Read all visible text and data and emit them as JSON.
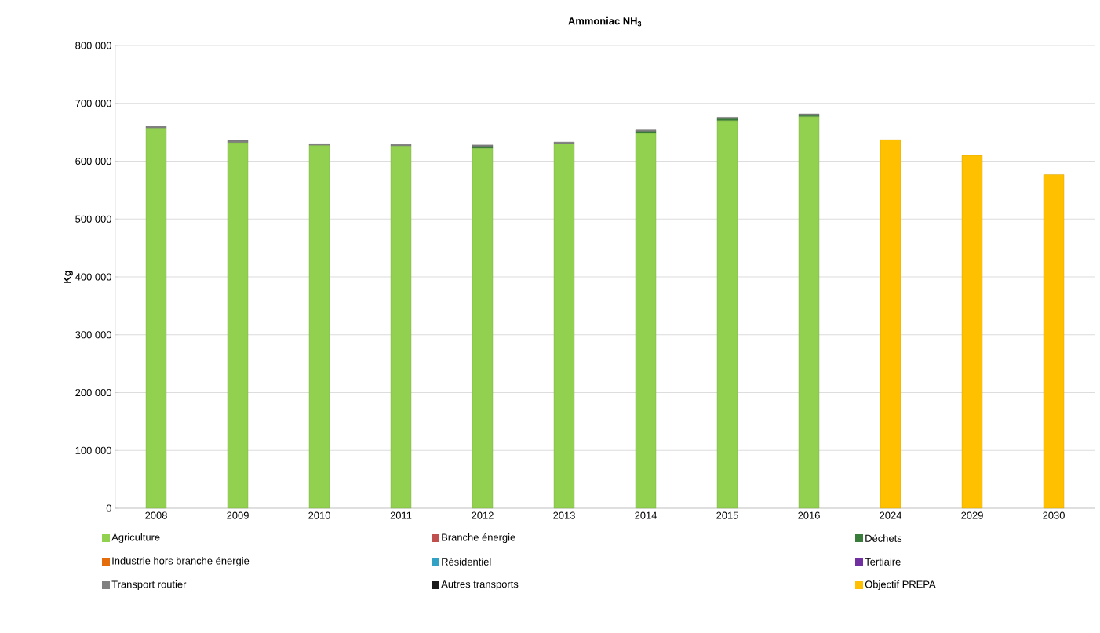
{
  "chart_data": {
    "type": "bar",
    "stacked": true,
    "title": "Ammoniac NH$_{3}$",
    "ylabel": "Kg",
    "categories": [
      "2008",
      "2009",
      "2010",
      "2011",
      "2012",
      "2013",
      "2014",
      "2015",
      "2016",
      "2024",
      "2029",
      "2030"
    ],
    "series": [
      {
        "name": "Agriculture",
        "color": "#92d050",
        "values": [
          657000,
          632000,
          627000,
          626000,
          622000,
          630000,
          648000,
          670000,
          677000,
          null,
          null,
          null
        ]
      },
      {
        "name": "Branche énergie",
        "color": "#c0504d",
        "values": [
          0,
          0,
          0,
          0,
          0,
          0,
          0,
          0,
          0,
          null,
          null,
          null
        ]
      },
      {
        "name": "Déchets",
        "color": "#3a7d3a",
        "values": [
          null,
          null,
          null,
          null,
          3000,
          null,
          3000,
          3000,
          2000,
          null,
          null,
          null
        ]
      },
      {
        "name": "Industrie hors branche énergie",
        "color": "#e46c0a",
        "values": [
          0,
          0,
          0,
          0,
          0,
          0,
          0,
          0,
          0,
          null,
          null,
          null
        ]
      },
      {
        "name": "Résidentiel",
        "color": "#31a2c4",
        "values": [
          0,
          0,
          0,
          0,
          0,
          0,
          0,
          0,
          0,
          null,
          null,
          null
        ]
      },
      {
        "name": "Tertiaire",
        "color": "#7030a0",
        "values": [
          0,
          0,
          0,
          0,
          0,
          0,
          0,
          0,
          0,
          null,
          null,
          null
        ]
      },
      {
        "name": "Transport routier",
        "color": "#808080",
        "values": [
          4000,
          4000,
          3000,
          3000,
          3000,
          3000,
          3000,
          3000,
          3000,
          null,
          null,
          null
        ]
      },
      {
        "name": "Autres transports",
        "color": "#1a1a1a",
        "values": [
          0,
          0,
          0,
          0,
          0,
          0,
          0,
          0,
          0,
          null,
          null,
          null
        ]
      },
      {
        "name": "Objectif PREPA",
        "color": "#ffc000",
        "values": [
          null,
          null,
          null,
          null,
          null,
          null,
          null,
          null,
          null,
          637000,
          610000,
          577000
        ]
      }
    ],
    "ylim": [
      0,
      800000
    ],
    "yticks": [
      {
        "value": 0,
        "label": "0"
      },
      {
        "value": 100000,
        "label": "100 000"
      },
      {
        "value": 200000,
        "label": "200 000"
      },
      {
        "value": 300000,
        "label": "300 000"
      },
      {
        "value": 400000,
        "label": "400 000"
      },
      {
        "value": 500000,
        "label": "500 000"
      },
      {
        "value": 600000,
        "label": "600 000"
      },
      {
        "value": 700000,
        "label": "700 000"
      },
      {
        "value": 800000,
        "label": "800 000"
      }
    ],
    "grid": "y",
    "legend": "bottom"
  }
}
